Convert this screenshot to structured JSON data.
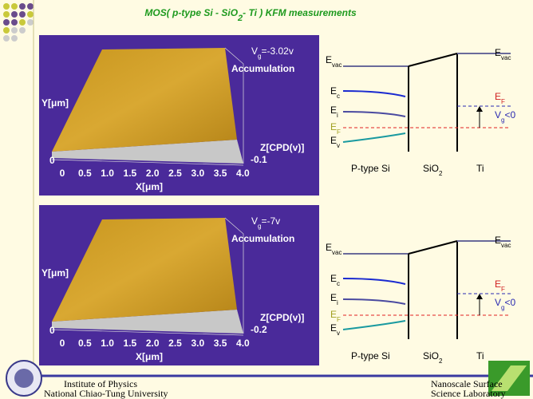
{
  "title": {
    "main": "MOS( p-type Si - SiO",
    "sub": "2",
    "rest": "- Ti ) KFM measurements"
  },
  "panels": [
    {
      "voltage": {
        "symbol": "V",
        "sub": "g",
        "value": "=-3.02v"
      },
      "state": "Accumulation",
      "y_axis": "Y[μm]",
      "y_tick": "0",
      "x_ticks": [
        "0",
        "0.5",
        "1.0",
        "1.5",
        "2.0",
        "2.5",
        "3.0",
        "3.5",
        "4.0"
      ],
      "x_axis": "X[μm]",
      "z_axis": "Z[CPD(v)]",
      "z_tick": "-0.1",
      "band": {
        "e_vac": {
          "E": "E",
          "sub": "vac"
        },
        "e_c": {
          "E": "E",
          "sub": "c"
        },
        "e_i": {
          "E": "E",
          "sub": "i"
        },
        "e_f_si": {
          "E": "E",
          "sub": "F"
        },
        "e_v": {
          "E": "E",
          "sub": "v"
        },
        "e_vac_ti": {
          "E": "E",
          "sub": "vac"
        },
        "e_f_ti": {
          "E": "E",
          "sub": "F"
        },
        "bias": {
          "V": "V",
          "sub": "g",
          "rest": "<0"
        },
        "si": "P-type Si",
        "oxide": {
          "main": "SiO",
          "sub": "2"
        },
        "metal": "Ti"
      }
    },
    {
      "voltage": {
        "symbol": "V",
        "sub": "g",
        "value": "=-7v"
      },
      "state": "Accumulation",
      "y_axis": "Y[μm]",
      "y_tick": "0",
      "x_ticks": [
        "0",
        "0.5",
        "1.0",
        "1.5",
        "2.0",
        "2.5",
        "3.0",
        "3.5",
        "4.0"
      ],
      "x_axis": "X[μm]",
      "z_axis": "Z[CPD(v)]",
      "z_tick": "-0.2",
      "band": {
        "e_vac": {
          "E": "E",
          "sub": "vac"
        },
        "e_c": {
          "E": "E",
          "sub": "c"
        },
        "e_i": {
          "E": "E",
          "sub": "i"
        },
        "e_f_si": {
          "E": "E",
          "sub": "F"
        },
        "e_v": {
          "E": "E",
          "sub": "v"
        },
        "e_vac_ti": {
          "E": "E",
          "sub": "vac"
        },
        "e_f_ti": {
          "E": "E",
          "sub": "F"
        },
        "bias": {
          "V": "V",
          "sub": "g",
          "rest": "<0"
        },
        "si": "P-type Si",
        "oxide": {
          "main": "SiO",
          "sub": "2"
        },
        "metal": "Ti"
      }
    }
  ],
  "footer": {
    "left": [
      "Institute of Physics",
      "National Chiao-Tung University"
    ],
    "right": [
      "Nanoscale Surface",
      "Science Laboratory"
    ]
  }
}
